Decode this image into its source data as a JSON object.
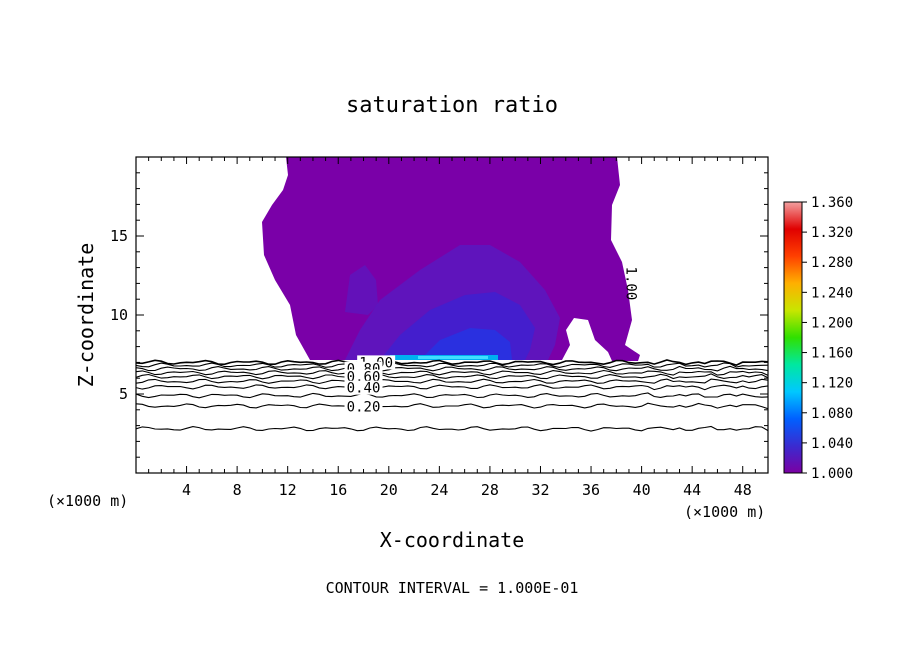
{
  "chart_data": {
    "type": "heatmap",
    "title": "saturation ratio",
    "xlabel": "X-coordinate",
    "ylabel": "Z-coordinate",
    "x_unit_left": "(×1000 m)",
    "x_unit_right": "(×1000 m)",
    "footer": "CONTOUR INTERVAL = 1.000E-01",
    "xlim": [
      0,
      50
    ],
    "ylim": [
      0,
      20
    ],
    "x_ticks": [
      4,
      8,
      12,
      16,
      20,
      24,
      28,
      32,
      36,
      40,
      44,
      48
    ],
    "y_ticks": [
      5,
      10,
      15
    ],
    "colorbar": {
      "min": 1.0,
      "max": 1.36,
      "labels": [
        "1.360",
        "1.320",
        "1.280",
        "1.240",
        "1.200",
        "1.160",
        "1.120",
        "1.080",
        "1.040",
        "1.000"
      ],
      "colors": [
        "#7b00a3",
        "#3a2bd0",
        "#0060ff",
        "#00c8ff",
        "#00e8a0",
        "#30e000",
        "#c8e600",
        "#ffb000",
        "#ff4000",
        "#e00000",
        "#f3a0a0"
      ]
    },
    "contour_labels": [
      {
        "text": "1.00",
        "x": 19,
        "z": 7.0
      },
      {
        "text": "0.80",
        "x": 18,
        "z": 6.6
      },
      {
        "text": "0.60",
        "x": 18,
        "z": 6.1
      },
      {
        "text": "0.40",
        "x": 18,
        "z": 5.4
      },
      {
        "text": "0.20",
        "x": 18,
        "z": 4.2
      },
      {
        "text": "1.00",
        "x": 39.2,
        "z": 12.0,
        "rotated": true
      }
    ],
    "contour_levels": [
      {
        "level": 0.1,
        "z": 2.8
      },
      {
        "level": 0.2,
        "z": 4.25
      },
      {
        "level": 0.3,
        "z": 4.9
      },
      {
        "level": 0.4,
        "z": 5.45
      },
      {
        "level": 0.5,
        "z": 5.8
      },
      {
        "level": 0.6,
        "z": 6.1
      },
      {
        "level": 0.7,
        "z": 6.35
      },
      {
        "level": 0.8,
        "z": 6.6
      },
      {
        "level": 0.9,
        "z": 6.82
      },
      {
        "level": 1.0,
        "z": 7.0
      }
    ]
  }
}
